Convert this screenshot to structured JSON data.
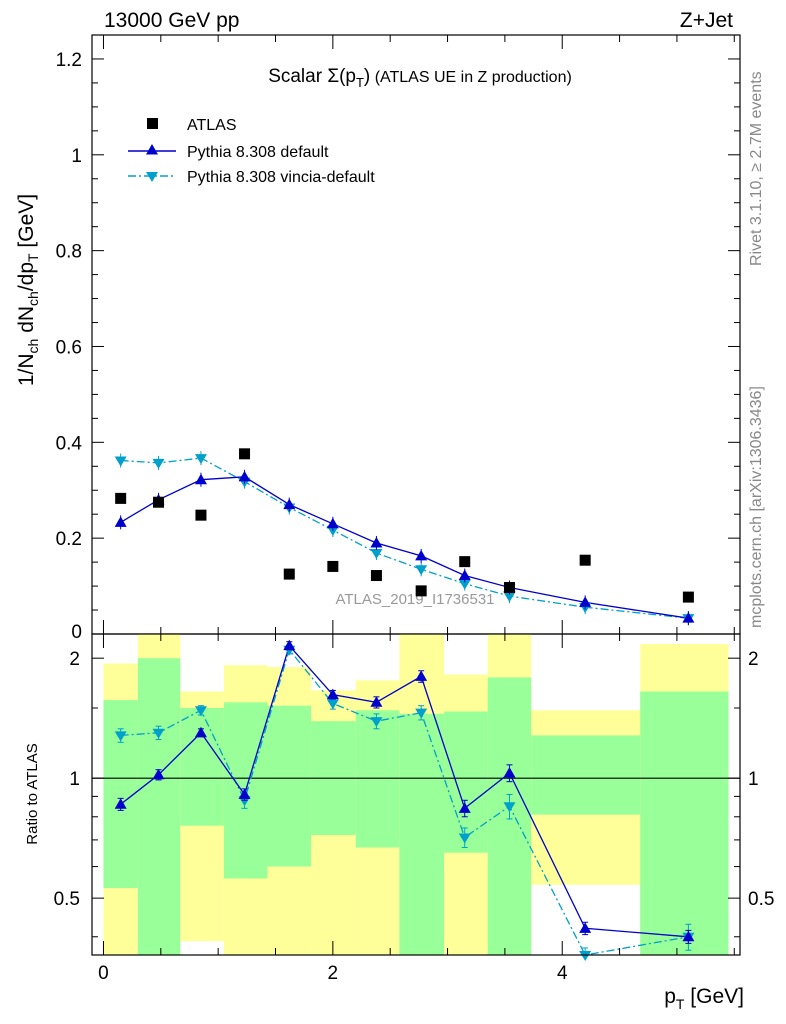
{
  "header": {
    "beam": "13000 GeV pp",
    "process": "Z+Jet"
  },
  "side_text": {
    "rivet": "Rivet 3.1.10, ≥ 2.7M events",
    "mcplots": "mcplots.cern.ch [arXiv:1306.3436]"
  },
  "chart_data": [
    {
      "type": "scatter",
      "panel": "main",
      "title": "Scalar Σ(p_T) (ATLAS UE in Z production)",
      "title_parts": {
        "prefix": "Scalar ",
        "sigma": "Σ(p",
        "sub": "T",
        "close": ")",
        "rest": " (ATLAS UE in Z production)"
      },
      "watermark": "ATLAS_2019_I1736531",
      "ylabel": "1/N_ch dN_ch/dp_T [GeV]",
      "ylabel_parts": {
        "a": "1/N",
        "a_sub": "ch",
        "b": " dN",
        "b_sub": "ch",
        "c": "/dp",
        "c_sub": "T",
        "d": " [GeV]"
      },
      "xlabel": "p_T [GeV]",
      "xlabel_parts": {
        "main": "p",
        "sub": "T",
        "unit": " [GeV]"
      },
      "xlim": [
        -0.1,
        5.55
      ],
      "ylim": [
        0,
        1.25
      ],
      "x_ticks": [
        0,
        2,
        4
      ],
      "y_ticks": [
        0,
        0.2,
        0.4,
        0.6,
        0.8,
        1.0,
        1.2
      ],
      "y_tick_labels": [
        "0",
        "0.2",
        "0.4",
        "0.6",
        "0.8",
        "1",
        "1.2"
      ],
      "legend_position": "top-left",
      "x": [
        0.15,
        0.48,
        0.85,
        1.23,
        1.62,
        2.0,
        2.38,
        2.77,
        3.15,
        3.54,
        4.2,
        5.1
      ],
      "series": [
        {
          "name": "ATLAS",
          "style": "data",
          "color": "#000000",
          "values": [
            0.283,
            0.275,
            0.248,
            0.376,
            0.125,
            0.141,
            0.122,
            0.09,
            0.151,
            0.097,
            0.154,
            0.077
          ]
        },
        {
          "name": "Pythia 8.308 default",
          "style": "line-solid",
          "color": "#0000cc",
          "values": [
            0.233,
            0.28,
            0.322,
            0.328,
            0.27,
            0.23,
            0.19,
            0.163,
            0.122,
            0.097,
            0.066,
            0.033
          ]
        },
        {
          "name": "Pythia 8.308 vincia-default",
          "style": "line-dashdot",
          "color": "#00a0cc",
          "values": [
            0.362,
            0.357,
            0.367,
            0.318,
            0.264,
            0.217,
            0.169,
            0.135,
            0.105,
            0.079,
            0.056,
            0.033
          ]
        }
      ]
    },
    {
      "type": "line",
      "panel": "ratio",
      "ylabel": "Ratio to ATLAS",
      "ylim": [
        0.36,
        2.3
      ],
      "log_y": true,
      "y_ticks": [
        0.5,
        1,
        2
      ],
      "y_tick_labels": [
        "0.5",
        "1",
        "2"
      ],
      "x": [
        0.15,
        0.48,
        0.85,
        1.23,
        1.62,
        2.0,
        2.38,
        2.77,
        3.15,
        3.54,
        4.2,
        5.1
      ],
      "bins": [
        {
          "lo": 0.0,
          "hi": 0.3,
          "g_lo": 0.53,
          "g_hi": 1.57,
          "y_lo": 0.36,
          "y_hi": 1.94
        },
        {
          "lo": 0.3,
          "hi": 0.67,
          "g_lo": 0.36,
          "g_hi": 2.0,
          "y_lo": 0.36,
          "y_hi": 2.3
        },
        {
          "lo": 0.67,
          "hi": 1.05,
          "g_lo": 0.76,
          "g_hi": 1.5,
          "y_lo": 0.39,
          "y_hi": 1.65
        },
        {
          "lo": 1.05,
          "hi": 1.43,
          "g_lo": 0.56,
          "g_hi": 1.55,
          "y_lo": 0.36,
          "y_hi": 1.92
        },
        {
          "lo": 1.43,
          "hi": 1.81,
          "g_lo": 0.6,
          "g_hi": 1.52,
          "y_lo": 0.36,
          "y_hi": 1.9
        },
        {
          "lo": 1.81,
          "hi": 2.2,
          "g_lo": 0.72,
          "g_hi": 1.39,
          "y_lo": 0.36,
          "y_hi": 1.66
        },
        {
          "lo": 2.2,
          "hi": 2.58,
          "g_lo": 0.67,
          "g_hi": 1.48,
          "y_lo": 0.36,
          "y_hi": 1.76
        },
        {
          "lo": 2.58,
          "hi": 2.97,
          "g_lo": 0.36,
          "g_hi": 1.45,
          "y_lo": 0.36,
          "y_hi": 2.3
        },
        {
          "lo": 2.97,
          "hi": 3.35,
          "g_lo": 0.65,
          "g_hi": 1.47,
          "y_lo": 0.36,
          "y_hi": 1.82
        },
        {
          "lo": 3.35,
          "hi": 3.73,
          "g_lo": 0.36,
          "g_hi": 1.79,
          "y_lo": 0.36,
          "y_hi": 2.3
        },
        {
          "lo": 3.73,
          "hi": 4.68,
          "g_lo": 0.81,
          "g_hi": 1.28,
          "y_lo": 0.54,
          "y_hi": 1.48
        },
        {
          "lo": 4.68,
          "hi": 5.45,
          "g_lo": 0.36,
          "g_hi": 1.65,
          "y_lo": 0.36,
          "y_hi": 2.17
        }
      ],
      "series": [
        {
          "name": "Pythia 8.308 default",
          "style": "line-solid",
          "color": "#0000cc",
          "values": [
            0.86,
            1.02,
            1.3,
            0.91,
            2.15,
            1.62,
            1.55,
            1.8,
            0.84,
            1.03,
            0.42,
            0.4
          ],
          "errors": [
            0.03,
            0.03,
            0.03,
            0.03,
            0.05,
            0.04,
            0.05,
            0.06,
            0.04,
            0.05,
            0.015,
            0.015
          ]
        },
        {
          "name": "Pythia 8.308 vincia-default",
          "style": "line-dashdot",
          "color": "#00a0cc",
          "values": [
            1.28,
            1.3,
            1.48,
            0.88,
            2.1,
            1.54,
            1.39,
            1.46,
            0.71,
            0.85,
            0.36,
            0.4
          ],
          "errors": [
            0.05,
            0.05,
            0.04,
            0.04,
            0.05,
            0.05,
            0.06,
            0.06,
            0.04,
            0.06,
            0.015,
            0.03
          ]
        }
      ]
    }
  ]
}
